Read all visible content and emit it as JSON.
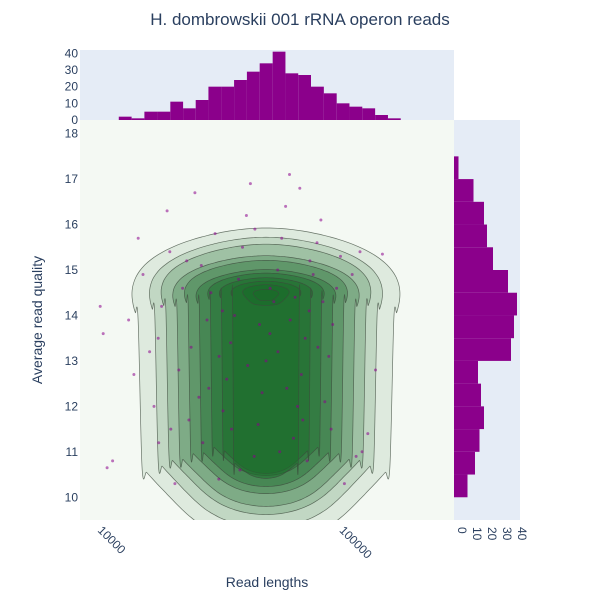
{
  "chart_data": {
    "type": "scatter",
    "title": "H. dombrowskii 001 rRNA operon reads",
    "xlabel": "Read lengths",
    "ylabel": "Average read quality",
    "x_scale": "log",
    "xlim": [
      8500,
      300000
    ],
    "ylim": [
      9.5,
      18.3
    ],
    "x_ticks": [
      {
        "value": 10000,
        "label": "10000"
      },
      {
        "value": 100000,
        "label": "100000"
      }
    ],
    "y_ticks": [
      {
        "value": 10,
        "label": "10"
      },
      {
        "value": 11,
        "label": "11"
      },
      {
        "value": 12,
        "label": "12"
      },
      {
        "value": 13,
        "label": "13"
      },
      {
        "value": 14,
        "label": "14"
      },
      {
        "value": 15,
        "label": "15"
      },
      {
        "value": 16,
        "label": "16"
      },
      {
        "value": 17,
        "label": "17"
      },
      {
        "value": 18,
        "label": "18"
      }
    ],
    "top_hist": {
      "ylim": [
        0,
        42
      ],
      "ticks": [
        {
          "value": 0,
          "label": "0"
        },
        {
          "value": 10,
          "label": "10"
        },
        {
          "value": 20,
          "label": "20"
        },
        {
          "value": 30,
          "label": "30"
        },
        {
          "value": 40,
          "label": "40"
        }
      ],
      "bins": [
        {
          "x0": 12300,
          "x1": 13900,
          "count": 2
        },
        {
          "x0": 13900,
          "x1": 15700,
          "count": 1
        },
        {
          "x0": 15700,
          "x1": 17800,
          "count": 5
        },
        {
          "x0": 17800,
          "x1": 20100,
          "count": 5
        },
        {
          "x0": 20100,
          "x1": 22700,
          "count": 11
        },
        {
          "x0": 22700,
          "x1": 25600,
          "count": 7
        },
        {
          "x0": 25600,
          "x1": 28900,
          "count": 12
        },
        {
          "x0": 28900,
          "x1": 32700,
          "count": 20
        },
        {
          "x0": 32700,
          "x1": 36900,
          "count": 20
        },
        {
          "x0": 36900,
          "x1": 41700,
          "count": 24
        },
        {
          "x0": 41700,
          "x1": 47100,
          "count": 29
        },
        {
          "x0": 47100,
          "x1": 53300,
          "count": 34
        },
        {
          "x0": 53300,
          "x1": 60200,
          "count": 41
        },
        {
          "x0": 60200,
          "x1": 68000,
          "count": 28
        },
        {
          "x0": 68000,
          "x1": 76800,
          "count": 27
        },
        {
          "x0": 76800,
          "x1": 86800,
          "count": 20
        },
        {
          "x0": 86800,
          "x1": 98100,
          "count": 16
        },
        {
          "x0": 98100,
          "x1": 110800,
          "count": 10
        },
        {
          "x0": 110800,
          "x1": 125200,
          "count": 8
        },
        {
          "x0": 125200,
          "x1": 141500,
          "count": 7
        },
        {
          "x0": 141500,
          "x1": 159900,
          "count": 3
        },
        {
          "x0": 159900,
          "x1": 180600,
          "count": 1
        }
      ]
    },
    "right_hist": {
      "xlim": [
        0,
        44
      ],
      "ticks": [
        {
          "value": 0,
          "label": "0"
        },
        {
          "value": 10,
          "label": "10"
        },
        {
          "value": 20,
          "label": "20"
        },
        {
          "value": 30,
          "label": "30"
        },
        {
          "value": 40,
          "label": "40"
        }
      ],
      "bins": [
        {
          "y0": 10.0,
          "y1": 10.5,
          "count": 9
        },
        {
          "y0": 10.5,
          "y1": 11.0,
          "count": 14
        },
        {
          "y0": 11.0,
          "y1": 11.5,
          "count": 17
        },
        {
          "y0": 11.5,
          "y1": 12.0,
          "count": 20
        },
        {
          "y0": 12.0,
          "y1": 12.5,
          "count": 18
        },
        {
          "y0": 12.5,
          "y1": 13.0,
          "count": 16
        },
        {
          "y0": 13.0,
          "y1": 13.5,
          "count": 38
        },
        {
          "y0": 13.5,
          "y1": 14.0,
          "count": 40
        },
        {
          "y0": 14.0,
          "y1": 14.5,
          "count": 42
        },
        {
          "y0": 14.5,
          "y1": 15.0,
          "count": 36
        },
        {
          "y0": 15.0,
          "y1": 15.5,
          "count": 26
        },
        {
          "y0": 15.5,
          "y1": 16.0,
          "count": 22
        },
        {
          "y0": 16.0,
          "y1": 16.5,
          "count": 20
        },
        {
          "y0": 16.5,
          "y1": 17.0,
          "count": 13
        },
        {
          "y0": 17.0,
          "y1": 17.5,
          "count": 3
        }
      ]
    },
    "density_levels": [
      {
        "cx": 50000,
        "cy": 13.9,
        "a": 2.3,
        "b": 4.0,
        "lobe_x": 50000,
        "lobe_y": 10.8,
        "lobe_a": 1.35,
        "lobe_b": 1.5
      },
      {
        "cx": 50000,
        "cy": 14.0,
        "a": 2.0,
        "b": 3.4,
        "lobe_x": 50000,
        "lobe_y": 10.9,
        "lobe_a": 1.2,
        "lobe_b": 1.3
      },
      {
        "cx": 50000,
        "cy": 14.1,
        "a": 1.8,
        "b": 2.9,
        "lobe_x": 50000,
        "lobe_y": 11.0,
        "lobe_a": 1.05,
        "lobe_b": 1.15
      },
      {
        "cx": 50000,
        "cy": 14.1,
        "a": 1.6,
        "b": 2.4,
        "lobe_x": 50000,
        "lobe_y": 11.0,
        "lobe_a": 0.92,
        "lobe_b": 1.0
      },
      {
        "cx": 50000,
        "cy": 14.2,
        "a": 1.4,
        "b": 2.0,
        "lobe_x": 50000,
        "lobe_y": 11.1,
        "lobe_a": 0.8,
        "lobe_b": 0.85
      },
      {
        "cx": 50000,
        "cy": 14.2,
        "a": 1.2,
        "b": 1.6,
        "lobe_x": 50000,
        "lobe_y": 11.1,
        "lobe_a": 0.68,
        "lobe_b": 0.72
      },
      {
        "cx": 50000,
        "cy": 14.3,
        "a": 1.0,
        "b": 1.25,
        "lobe_x": 50000,
        "lobe_y": 11.2,
        "lobe_a": 0.55,
        "lobe_b": 0.6
      },
      {
        "cx": 50000,
        "cy": 14.35,
        "a": 0.8,
        "b": 0.95,
        "lobe_x": 50000,
        "lobe_y": 11.1,
        "lobe_a": 0.42,
        "lobe_b": 0.48
      },
      {
        "cx": 50000,
        "cy": 14.4,
        "a": 0.6,
        "b": 0.7,
        "lobe_x": 50000,
        "lobe_y": 10.8,
        "lobe_a": 0.3,
        "lobe_b": 0.32
      },
      {
        "cx": 50000,
        "cy": 14.45,
        "a": 0.4,
        "b": 0.45
      },
      {
        "cx": 50000,
        "cy": 14.45,
        "a": 0.22,
        "b": 0.25
      }
    ],
    "points": [
      [
        11000,
        10.65
      ],
      [
        11600,
        10.8
      ],
      [
        10300,
        14.2
      ],
      [
        10600,
        13.6
      ],
      [
        13500,
        13.9
      ],
      [
        14200,
        12.7
      ],
      [
        14800,
        15.7
      ],
      [
        15500,
        14.9
      ],
      [
        16500,
        13.2
      ],
      [
        17200,
        12.0
      ],
      [
        17900,
        13.5
      ],
      [
        18500,
        14.2
      ],
      [
        19500,
        16.3
      ],
      [
        20200,
        11.5
      ],
      [
        21000,
        10.3
      ],
      [
        21800,
        12.8
      ],
      [
        22600,
        14.6
      ],
      [
        23500,
        15.2
      ],
      [
        24500,
        13.3
      ],
      [
        25400,
        16.7
      ],
      [
        26400,
        12.2
      ],
      [
        27400,
        11.2
      ],
      [
        28500,
        13.9
      ],
      [
        29600,
        14.5
      ],
      [
        30800,
        15.8
      ],
      [
        31900,
        10.4
      ],
      [
        33200,
        11.9
      ],
      [
        34400,
        12.6
      ],
      [
        35700,
        13.4
      ],
      [
        37100,
        14.0
      ],
      [
        38500,
        14.8
      ],
      [
        40000,
        15.5
      ],
      [
        41500,
        16.2
      ],
      [
        43100,
        16.9
      ],
      [
        44700,
        10.9
      ],
      [
        46400,
        11.6
      ],
      [
        48200,
        12.3
      ],
      [
        50000,
        13.0
      ],
      [
        51900,
        13.6
      ],
      [
        53900,
        14.3
      ],
      [
        55900,
        15.0
      ],
      [
        58100,
        15.7
      ],
      [
        60300,
        16.4
      ],
      [
        62600,
        17.1
      ],
      [
        65000,
        11.3
      ],
      [
        67500,
        12.0
      ],
      [
        70000,
        12.7
      ],
      [
        72700,
        13.5
      ],
      [
        75500,
        14.1
      ],
      [
        78400,
        14.9
      ],
      [
        81300,
        15.6
      ],
      [
        84400,
        16.1
      ],
      [
        87600,
        12.1
      ],
      [
        91000,
        13.1
      ],
      [
        94400,
        13.8
      ],
      [
        98000,
        14.6
      ],
      [
        101700,
        15.3
      ],
      [
        105600,
        10.3
      ],
      [
        113700,
        14.9
      ],
      [
        122500,
        15.4
      ],
      [
        131900,
        11.4
      ],
      [
        142000,
        12.8
      ],
      [
        151700,
        15.35
      ],
      [
        118000,
        10.9
      ],
      [
        125000,
        11.0
      ],
      [
        36000,
        11.5
      ],
      [
        42000,
        12.9
      ],
      [
        47000,
        13.8
      ],
      [
        52000,
        14.6
      ],
      [
        56000,
        13.2
      ],
      [
        61000,
        12.4
      ],
      [
        66000,
        14.4
      ],
      [
        71000,
        11.7
      ],
      [
        76000,
        15.2
      ],
      [
        82000,
        13.3
      ],
      [
        39000,
        10.6
      ],
      [
        33000,
        14.1
      ],
      [
        29000,
        12.4
      ],
      [
        27000,
        15.1
      ],
      [
        24000,
        11.7
      ],
      [
        20000,
        15.4
      ],
      [
        18000,
        11.2
      ],
      [
        32000,
        13.1
      ],
      [
        45000,
        15.9
      ],
      [
        57000,
        11.0
      ],
      [
        63000,
        13.9
      ],
      [
        69000,
        16.8
      ],
      [
        74000,
        10.8
      ],
      [
        86000,
        14.3
      ],
      [
        93000,
        11.5
      ]
    ],
    "marker_color": "#8b008b",
    "contour_fill": "#1a6b2a",
    "grid": false
  }
}
